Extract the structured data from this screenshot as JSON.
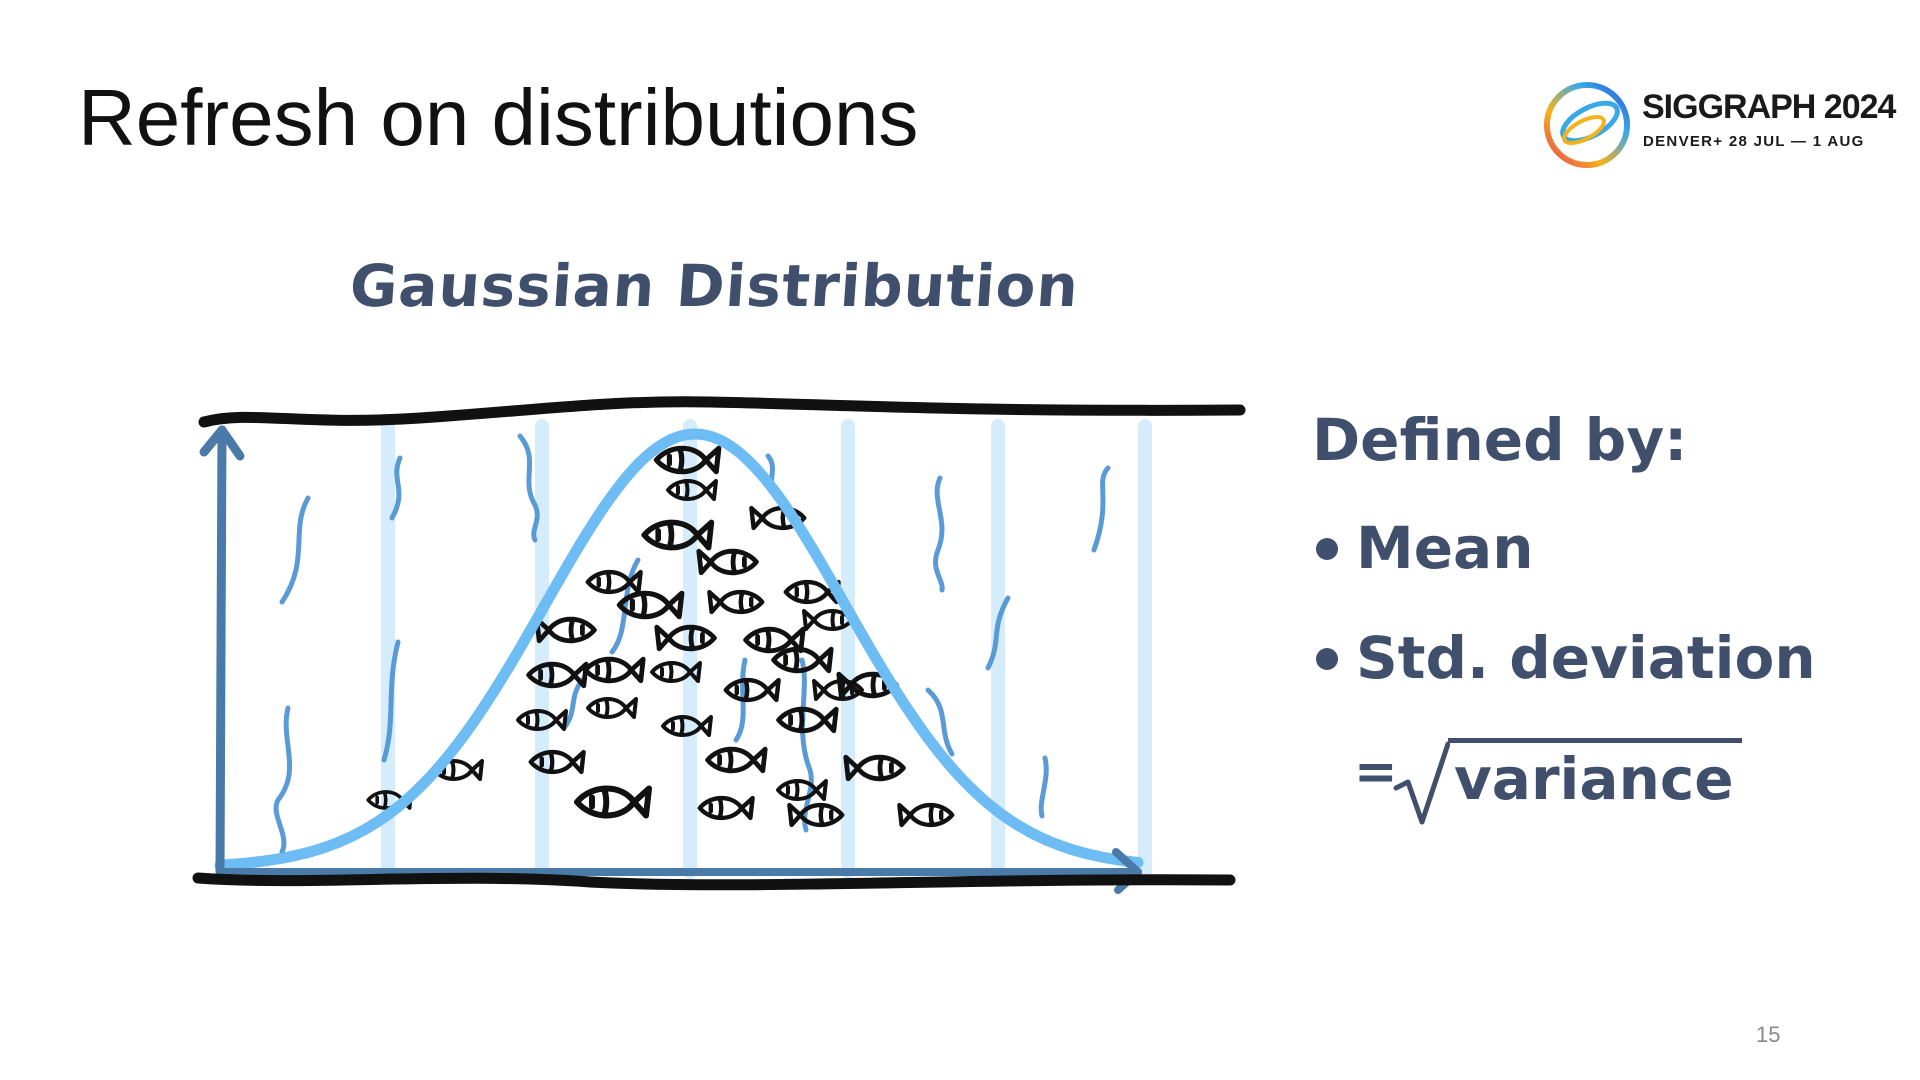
{
  "slide": {
    "title": "Refresh on distributions",
    "page_number": "15"
  },
  "logo": {
    "name": "SIGGRAPH 2024",
    "subtitle": "DENVER+ 28 JUL — 1 AUG"
  },
  "drawing": {
    "title": "Gaussian Distribution",
    "style": "hand-drawn sketch: bell curve filled with fish, water streaks, y-axis and x-axis arrows"
  },
  "definition": {
    "heading": "Defined by:",
    "items": [
      "Mean",
      "Std. deviation"
    ],
    "formula_prefix": "=",
    "formula_radicand": "variance"
  },
  "colors": {
    "text_dark": "#111111",
    "hand_text": "#3f4f6c",
    "curve_blue": "#6ebcf4",
    "axis_blue": "#4a7aa8",
    "water_streak": "#cfe9fb",
    "wave_blue": "#5b9bd5",
    "ink": "#111111"
  },
  "icons": {
    "logo_mark": "siggraph-swirl-icon",
    "fish": "fish-icon"
  }
}
